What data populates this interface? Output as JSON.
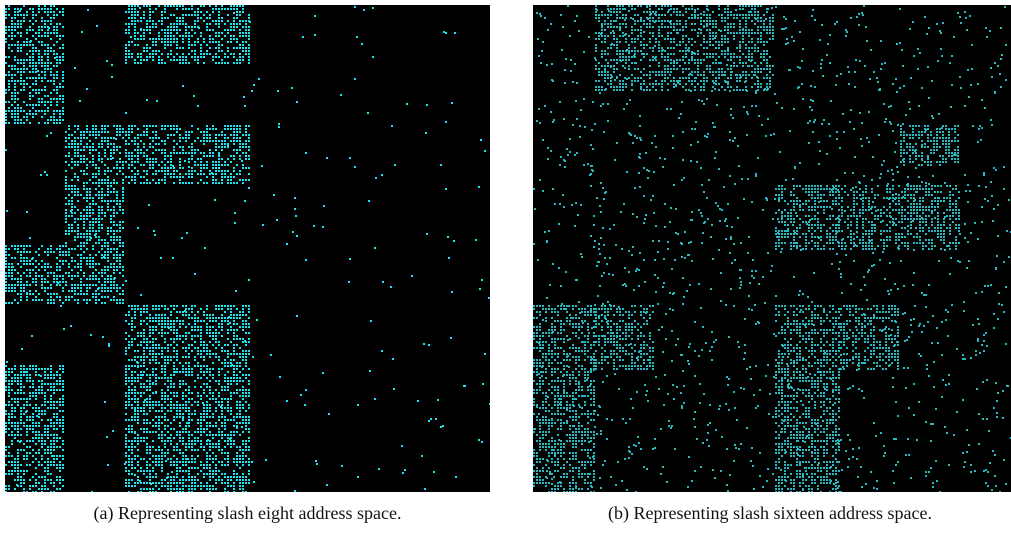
{
  "figure": {
    "panels": [
      {
        "caption": "(a) Representing slash eight address space."
      },
      {
        "caption": "(b) Representing slash sixteen address space."
      }
    ]
  }
}
